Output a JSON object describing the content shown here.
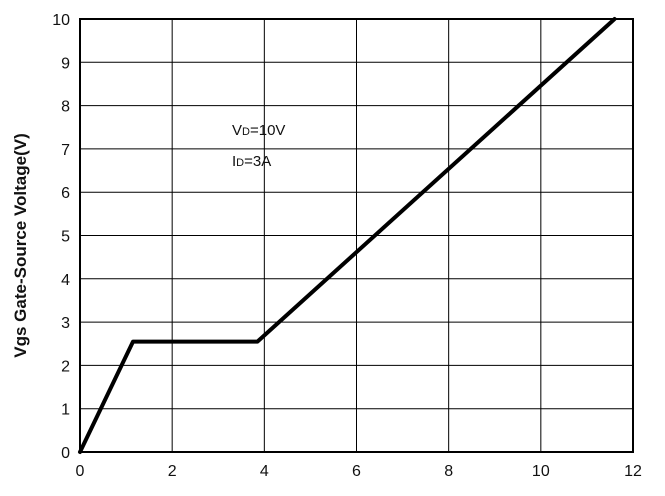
{
  "chart_data": {
    "type": "line",
    "title": "",
    "xlabel": "",
    "ylabel": "Vgs Gate-Source Voltage(V)",
    "xlim": [
      0,
      12
    ],
    "ylim": [
      0,
      10
    ],
    "x_ticks": [
      "0",
      "2",
      "4",
      "6",
      "8",
      "10",
      "12"
    ],
    "y_ticks": [
      "0",
      "1",
      "2",
      "3",
      "4",
      "5",
      "6",
      "7",
      "8",
      "9",
      "10"
    ],
    "grid": true,
    "series": [
      {
        "x": [
          0,
          1.15,
          3.85,
          11.6
        ],
        "y": [
          0,
          2.55,
          2.55,
          10
        ]
      }
    ],
    "annotations": [
      {
        "main": "V",
        "sub": "D",
        "rest": "=10V"
      },
      {
        "main": "I",
        "sub": "D",
        "rest": "=3A"
      }
    ]
  }
}
